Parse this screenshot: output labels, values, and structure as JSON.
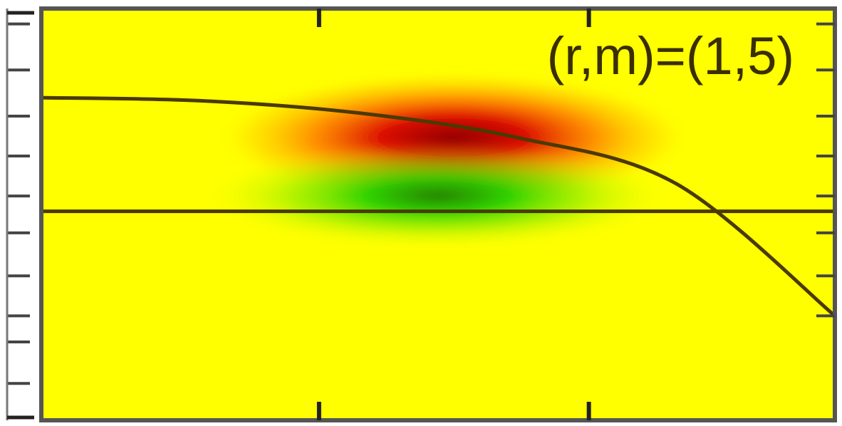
{
  "chart_data": {
    "type": "heatmap",
    "title": "",
    "xlabel": "",
    "ylabel": "",
    "annotation": "(r,m)=(1,5)",
    "grid": false,
    "legend": "none",
    "colors": {
      "background": "#ffff00",
      "positive": "#b40000",
      "negative": "#008000",
      "curve": "#4a3a00",
      "frame": "#555555"
    },
    "field": {
      "lobes": [
        {
          "name": "",
          "sign": "positive",
          "x": 0.52,
          "y": 0.58,
          "peak": 1.0
        },
        {
          "name": "",
          "sign": "negative",
          "x": 0.5,
          "y": 0.39,
          "peak": 0.85
        }
      ]
    },
    "curves": [
      {
        "name": "",
        "x": [
          0.0,
          0.2,
          0.4,
          0.6,
          0.8,
          1.0
        ],
        "y": [
          0.71,
          0.7,
          0.66,
          0.58,
          0.43,
          0.0
        ]
      },
      {
        "name": "",
        "x": [
          0.0,
          1.0
        ],
        "y": [
          0.34,
          0.34
        ]
      }
    ],
    "xlim": [
      0,
      1
    ],
    "ylim": [
      -0.34,
      1.0
    ],
    "x_major_ticks": [
      0.35,
      0.69
    ],
    "y_ticks_left": [
      -0.22,
      -0.085,
      0.0,
      0.13,
      0.27,
      0.39,
      0.52,
      0.65,
      0.8,
      0.95
    ],
    "y_ticks_right": [
      0.0,
      0.13,
      0.27,
      0.39,
      0.52,
      0.65,
      0.8,
      0.95
    ]
  }
}
